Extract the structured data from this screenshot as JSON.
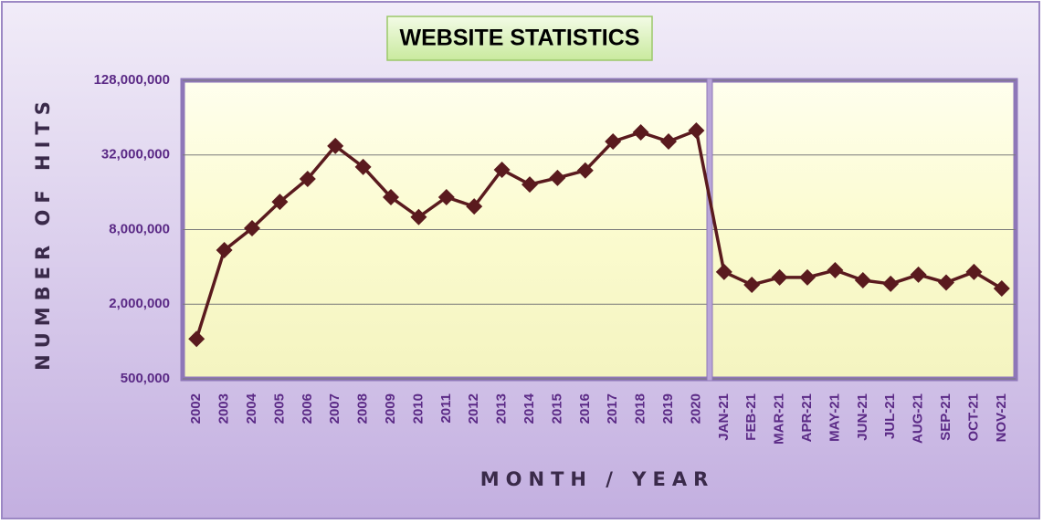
{
  "chart_data": {
    "type": "line",
    "title": "WEBSITE STATISTICS",
    "x_label": "MONTH / YEAR",
    "y_label": "NUMBER OF HITS",
    "categories": [
      "2002",
      "2003",
      "2004",
      "2005",
      "2006",
      "2007",
      "2008",
      "2009",
      "2010",
      "2011",
      "2012",
      "2013",
      "2014",
      "2015",
      "2016",
      "2017",
      "2018",
      "2019",
      "2020",
      "JAN-21",
      "FEB-21",
      "MAR-21",
      "APR-21",
      "MAY-21",
      "JUN-21",
      "JUL-21",
      "AUG-21",
      "SEP-21",
      "OCT-21",
      "NOV-21"
    ],
    "values": [
      1050000,
      5460000,
      8200000,
      13400000,
      20500000,
      37800000,
      25600000,
      14600000,
      10100000,
      14600000,
      12300000,
      24300000,
      18500000,
      20900000,
      24000000,
      41100000,
      48700000,
      41100000,
      50400000,
      3640000,
      2870000,
      3290000,
      3290000,
      3760000,
      3120000,
      2920000,
      3460000,
      2990000,
      3640000,
      2680000
    ],
    "color": "#5a1a1e",
    "y_scale": "log",
    "ylim": [
      500000,
      128000000
    ],
    "yticks": [
      {
        "value": 500000,
        "label": "500,000"
      },
      {
        "value": 2000000,
        "label": "2,000,000"
      },
      {
        "value": 8000000,
        "label": "8,000,000"
      },
      {
        "value": 32000000,
        "label": "32,000,000"
      },
      {
        "value": 128000000,
        "label": "128,000,000"
      }
    ],
    "grid": true
  }
}
